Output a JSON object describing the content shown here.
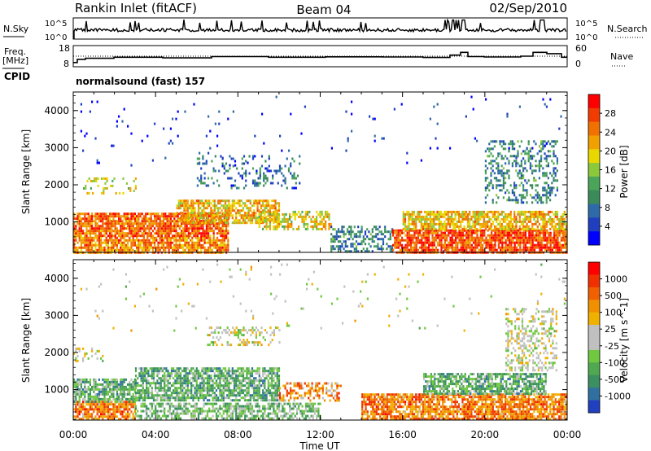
{
  "header": {
    "station": "Rankin Inlet (fitACF)",
    "beam": "Beam 04",
    "date": "02/Sep/2010"
  },
  "noise_panel": {
    "left_label": "N.Sky",
    "right_label": "N.Search",
    "y_ticks": [
      "10^5",
      "10^0"
    ]
  },
  "freq_panel": {
    "left_label_1": "Freq.",
    "left_label_2": "[MHz]",
    "right_label": "Nave",
    "left_ticks": [
      "18",
      "8"
    ],
    "right_ticks": [
      "60",
      "0"
    ]
  },
  "cpid": {
    "label": "CPID",
    "value": "normalsound (fast) 157"
  },
  "chart_data": [
    {
      "type": "heatmap",
      "parameter": "Power",
      "ylabel": "Slant Range [km]",
      "xlabel": "",
      "colorbar_label": "Power [dB]",
      "xlim": [
        "00:00",
        "24:00"
      ],
      "ylim": [
        180,
        4500
      ],
      "x_ticks": [
        "00:00",
        "04:00",
        "08:00",
        "12:00",
        "16:00",
        "20:00",
        "00:00"
      ],
      "y_ticks": [
        1000,
        2000,
        3000,
        4000
      ],
      "colorbar_ticks": [
        "28",
        "24",
        "20",
        "16",
        "12",
        "8",
        "4"
      ],
      "colorbar_colors": [
        "#0000ff",
        "#1f3fbf",
        "#2e6aa8",
        "#3a8a5a",
        "#4aa45a",
        "#8cc83c",
        "#e8d800",
        "#f0a000",
        "#f07000",
        "#f03c00",
        "#ff0000"
      ],
      "scatter_bands": [
        {
          "t0": 0,
          "t1": 7.5,
          "r0": 200,
          "r1": 600,
          "level": 0.75,
          "density": 0.8
        },
        {
          "t0": 0,
          "t1": 7.5,
          "r0": 600,
          "r1": 1250,
          "level": 0.8,
          "density": 0.85
        },
        {
          "t0": 5,
          "t1": 10,
          "r0": 1000,
          "r1": 1600,
          "level": 0.65,
          "density": 0.7
        },
        {
          "t0": 9,
          "t1": 12.5,
          "r0": 800,
          "r1": 1300,
          "level": 0.6,
          "density": 0.55
        },
        {
          "t0": 12.5,
          "t1": 15.5,
          "r0": 200,
          "r1": 900,
          "level": 0.3,
          "density": 0.45
        },
        {
          "t0": 15.5,
          "t1": 24,
          "r0": 200,
          "r1": 800,
          "level": 0.85,
          "density": 0.85
        },
        {
          "t0": 16,
          "t1": 24,
          "r0": 800,
          "r1": 1300,
          "level": 0.65,
          "density": 0.75
        },
        {
          "t0": 6,
          "t1": 11,
          "r0": 1900,
          "r1": 2800,
          "level": 0.25,
          "density": 0.2
        },
        {
          "t0": 20,
          "t1": 23.5,
          "r0": 1500,
          "r1": 3200,
          "level": 0.3,
          "density": 0.35
        },
        {
          "t0": 0.3,
          "t1": 3,
          "r0": 1800,
          "r1": 2200,
          "level": 0.55,
          "density": 0.2
        },
        {
          "t0": 0,
          "t1": 24,
          "r0": 2500,
          "r1": 4400,
          "level": 0.1,
          "density": 0.015
        }
      ]
    },
    {
      "type": "heatmap",
      "parameter": "Velocity",
      "ylabel": "Slant Range [km]",
      "xlabel": "Time UT",
      "colorbar_label": "Velocity [m s^-1]",
      "xlim": [
        "00:00",
        "24:00"
      ],
      "ylim": [
        180,
        4500
      ],
      "x_ticks": [
        "00:00",
        "04:00",
        "08:00",
        "12:00",
        "16:00",
        "20:00",
        "00:00"
      ],
      "y_ticks": [
        1000,
        2000,
        3000,
        4000
      ],
      "colorbar_ticks": [
        "1000",
        "500",
        "100",
        "25",
        "-25",
        "-100",
        "-500",
        "-1000"
      ],
      "colorbar_colors": [
        "#2040c0",
        "#3070a0",
        "#3a9060",
        "#50a850",
        "#70c840",
        "#c0c0c0",
        "#c0c0c0",
        "#f0b000",
        "#f09000",
        "#f06000",
        "#f03000",
        "#ff0000"
      ],
      "scatter_bands": [
        {
          "t0": 0,
          "t1": 3,
          "r0": 200,
          "r1": 700,
          "level": 0.75,
          "density": 0.8
        },
        {
          "t0": 0,
          "t1": 3,
          "r0": 700,
          "r1": 1300,
          "level": 0.3,
          "density": 0.75
        },
        {
          "t0": 3,
          "t1": 12,
          "r0": 200,
          "r1": 650,
          "level": 0.35,
          "density": 0.6
        },
        {
          "t0": 3,
          "t1": 10,
          "r0": 700,
          "r1": 1600,
          "level": 0.3,
          "density": 0.75
        },
        {
          "t0": 10,
          "t1": 13,
          "r0": 700,
          "r1": 1200,
          "level": 0.7,
          "density": 0.5
        },
        {
          "t0": 14,
          "t1": 24,
          "r0": 200,
          "r1": 900,
          "level": 0.75,
          "density": 0.8
        },
        {
          "t0": 17,
          "t1": 23,
          "r0": 900,
          "r1": 1450,
          "level": 0.3,
          "density": 0.75
        },
        {
          "t0": 6.5,
          "t1": 10,
          "r0": 2200,
          "r1": 2700,
          "level": 0.5,
          "density": 0.3
        },
        {
          "t0": 21,
          "t1": 23.5,
          "r0": 1500,
          "r1": 3200,
          "level": 0.5,
          "density": 0.35
        },
        {
          "t0": 0,
          "t1": 1.5,
          "r0": 1800,
          "r1": 2200,
          "level": 0.5,
          "density": 0.25
        },
        {
          "t0": 0,
          "t1": 24,
          "r0": 2500,
          "r1": 4400,
          "level": 0.5,
          "density": 0.015
        }
      ]
    }
  ]
}
